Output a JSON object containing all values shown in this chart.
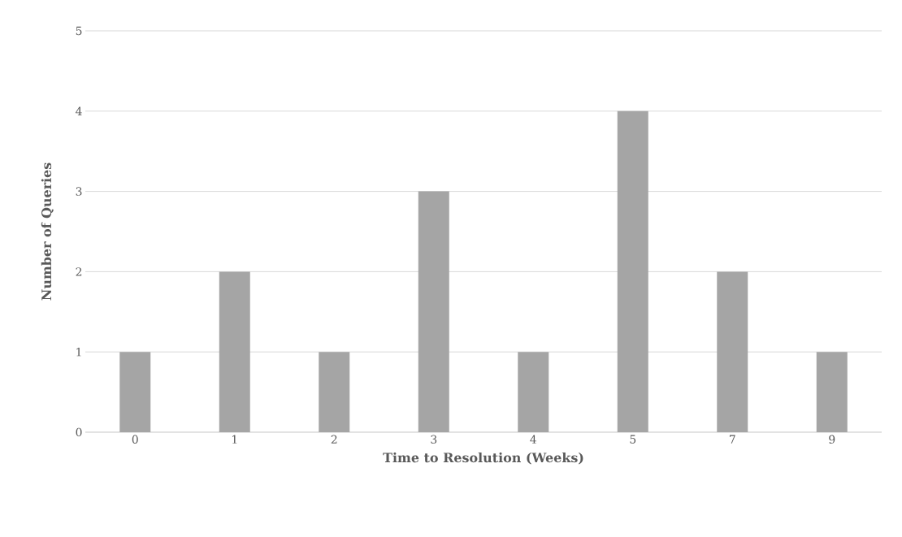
{
  "chart_data": {
    "type": "bar",
    "xlabel": "Time to Resolution (Weeks)",
    "ylabel": "Number of Queries",
    "categories": [
      "0",
      "1",
      "2",
      "3",
      "4",
      "5",
      "7",
      "9"
    ],
    "values": [
      1,
      2,
      1,
      3,
      1,
      4,
      2,
      1
    ],
    "color": "#a5a5a5",
    "ylim": [
      0,
      5
    ],
    "yticks": [
      0,
      1,
      2,
      3,
      4,
      5
    ],
    "grid": "y"
  }
}
